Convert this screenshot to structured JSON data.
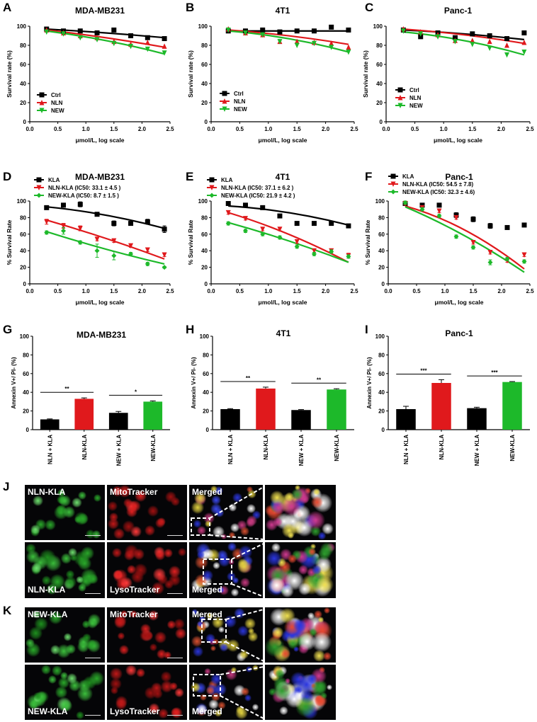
{
  "survival_axis": {
    "ylabel_top": "Survival rate (%)",
    "ylabel_mid": "% Survival Rate",
    "xlabel": "μmol/L, log scale",
    "x_ticks": [
      "0.0",
      "0.5",
      "1.0",
      "1.5",
      "2.0",
      "2.5"
    ],
    "y_ticks_top": [
      "0",
      "20",
      "40",
      "60",
      "80",
      "100"
    ],
    "y_ticks_mid": [
      "0",
      "20",
      "40",
      "60",
      "80",
      "100"
    ]
  },
  "colors": {
    "black": "#000000",
    "red": "#e0191c",
    "green": "#1db92a"
  },
  "chart_data": [
    {
      "id": "A",
      "type": "scatter",
      "title": "MDA-MB231",
      "xlabel": "μmol/L, log scale",
      "ylabel": "Survival rate (%)",
      "xlim": [
        0,
        2.5
      ],
      "ylim": [
        0,
        100
      ],
      "x": [
        0.3,
        0.6,
        0.9,
        1.2,
        1.5,
        1.8,
        2.1,
        2.4
      ],
      "legend": [
        "Ctrl",
        "NLN",
        "NEW"
      ],
      "series": [
        {
          "name": "Ctrl",
          "color": "#000000",
          "marker": "square",
          "values": [
            97,
            95,
            95,
            93,
            96,
            90,
            88,
            87
          ],
          "fit": [
            97,
            93,
            88
          ]
        },
        {
          "name": "NLN",
          "color": "#e0191c",
          "marker": "triangle",
          "values": [
            96,
            93,
            90,
            88,
            84,
            81,
            83,
            79
          ],
          "fit": [
            96,
            88,
            78
          ]
        },
        {
          "name": "NEW",
          "color": "#1db92a",
          "marker": "tri-down",
          "values": [
            94,
            92,
            88,
            86,
            82,
            79,
            76,
            72
          ],
          "fit": [
            95,
            85,
            71
          ]
        }
      ]
    },
    {
      "id": "B",
      "type": "scatter",
      "title": "4T1",
      "xlabel": "μmol/L, log scale",
      "ylabel": "Survival rate (%)",
      "xlim": [
        0,
        2.5
      ],
      "ylim": [
        0,
        100
      ],
      "x": [
        0.3,
        0.6,
        0.9,
        1.2,
        1.5,
        1.8,
        2.1,
        2.4
      ],
      "legend": [
        "Ctrl",
        "NLN",
        "NEW"
      ],
      "series": [
        {
          "name": "Ctrl",
          "color": "#000000",
          "marker": "square",
          "values": [
            95,
            95,
            96,
            94,
            95,
            95,
            99,
            96
          ],
          "fit": [
            95,
            95,
            95
          ]
        },
        {
          "name": "NLN",
          "color": "#e0191c",
          "marker": "triangle",
          "values": [
            97,
            93,
            91,
            84,
            84,
            83,
            82,
            78
          ],
          "fit": [
            96,
            90,
            81
          ]
        },
        {
          "name": "NEW",
          "color": "#1db92a",
          "marker": "tri-down",
          "values": [
            96,
            93,
            91,
            84,
            80,
            82,
            78,
            73
          ],
          "fit": [
            95,
            87,
            73
          ]
        }
      ]
    },
    {
      "id": "C",
      "type": "scatter",
      "title": "Panc-1",
      "xlabel": "μmol/L, log scale",
      "ylabel": "Survival rate (%)",
      "xlim": [
        0,
        2.5
      ],
      "ylim": [
        0,
        100
      ],
      "x": [
        0.3,
        0.6,
        0.9,
        1.2,
        1.5,
        1.8,
        2.1,
        2.4
      ],
      "legend": [
        "Ctrl",
        "NLN",
        "NEW"
      ],
      "series": [
        {
          "name": "Ctrl",
          "color": "#000000",
          "marker": "square",
          "values": [
            96,
            89,
            93,
            88,
            92,
            90,
            87,
            93
          ],
          "fit": [
            96,
            92,
            86
          ]
        },
        {
          "name": "NLN",
          "color": "#e0191c",
          "marker": "triangle",
          "values": [
            97,
            94,
            91,
            85,
            85,
            84,
            80,
            83
          ],
          "fit": [
            97,
            91,
            82
          ]
        },
        {
          "name": "NEW",
          "color": "#1db92a",
          "marker": "tri-down",
          "values": [
            95,
            92,
            89,
            84,
            81,
            77,
            70,
            73
          ],
          "fit": [
            94,
            85,
            70
          ]
        }
      ]
    },
    {
      "id": "D",
      "type": "scatter",
      "title": "MDA-MB231",
      "xlabel": "μmol/L, log scale",
      "ylabel": "% Survival Rate",
      "xlim": [
        0,
        2.5
      ],
      "ylim": [
        0,
        100
      ],
      "x": [
        0.3,
        0.6,
        0.9,
        1.2,
        1.5,
        1.8,
        2.1,
        2.4
      ],
      "legend": [
        "KLA",
        "NLN-KLA (IC50: 33.1 ± 4.5 )",
        "NEW-KLA (IC50: 8.7 ± 1.5 )"
      ],
      "series": [
        {
          "name": "KLA",
          "color": "#000000",
          "marker": "square",
          "values": [
            92,
            95,
            96,
            84,
            73,
            73,
            75,
            66
          ],
          "err": [
            2,
            2,
            3,
            2,
            3,
            2,
            3,
            4
          ],
          "fit": [
            93,
            83,
            67
          ]
        },
        {
          "name": "NLN-KLA",
          "color": "#e0191c",
          "marker": "tri-down",
          "values": [
            75,
            70,
            67,
            54,
            52,
            46,
            41,
            35
          ],
          "err": [
            3,
            3,
            3,
            2,
            2,
            2,
            2,
            2
          ],
          "fit": [
            77,
            55,
            30
          ]
        },
        {
          "name": "NEW-KLA",
          "color": "#1db92a",
          "marker": "diamond",
          "values": [
            62,
            64,
            50,
            40,
            34,
            36,
            24,
            20
          ],
          "err": [
            2,
            4,
            2,
            8,
            5,
            2,
            2,
            1
          ],
          "fit": [
            63,
            42,
            24
          ]
        }
      ]
    },
    {
      "id": "E",
      "type": "scatter",
      "title": "4T1",
      "xlabel": "μmol/L, log scale",
      "ylabel": "% Survival Rate",
      "xlim": [
        0,
        2.5
      ],
      "ylim": [
        0,
        100
      ],
      "x": [
        0.3,
        0.6,
        0.9,
        1.2,
        1.5,
        1.8,
        2.1,
        2.4
      ],
      "legend": [
        "KLA",
        "NLN-KLA (IC50: 37.1 ± 6.2 )",
        "NEW-KLA (IC50: 21.9 ± 4.2 )"
      ],
      "series": [
        {
          "name": "KLA",
          "color": "#000000",
          "marker": "square",
          "values": [
            97,
            95,
            92,
            82,
            73,
            73,
            73,
            70
          ],
          "err": [
            2,
            2,
            2,
            2,
            2,
            2,
            2,
            2
          ],
          "fit": [
            94,
            86,
            71
          ]
        },
        {
          "name": "NLN-KLA",
          "color": "#e0191c",
          "marker": "tri-down",
          "values": [
            86,
            79,
            66,
            66,
            51,
            40,
            40,
            34
          ],
          "err": [
            2,
            2,
            2,
            2,
            2,
            2,
            2,
            3
          ],
          "fit": [
            86,
            60,
            26
          ]
        },
        {
          "name": "NEW-KLA",
          "color": "#1db92a",
          "marker": "diamond",
          "values": [
            73,
            64,
            60,
            56,
            45,
            36,
            39,
            33
          ],
          "err": [
            2,
            2,
            2,
            2,
            2,
            2,
            2,
            2
          ],
          "fit": [
            74,
            52,
            26
          ]
        }
      ]
    },
    {
      "id": "F",
      "type": "scatter",
      "title": "Panc-1",
      "xlabel": "μmol/L, log scale",
      "ylabel": "% Survival Rate",
      "xlim": [
        0,
        2.5
      ],
      "ylim": [
        0,
        100
      ],
      "x": [
        0.3,
        0.6,
        0.9,
        1.2,
        1.5,
        1.8,
        2.1,
        2.4
      ],
      "legend": [
        "KLA",
        "NLN-KLA (IC50: 54.5 ± 7.8)",
        "NEW-KLA (IC50: 32.3 ± 4.6)"
      ],
      "series": [
        {
          "name": "KLA",
          "color": "#000000",
          "marker": "square",
          "values": [
            97,
            95,
            95,
            83,
            78,
            70,
            68,
            71
          ],
          "err": [
            2,
            2,
            2,
            3,
            3,
            3,
            2,
            2
          ],
          "fit": null
        },
        {
          "name": "NLN-KLA",
          "color": "#e0191c",
          "marker": "tri-down",
          "values": [
            97,
            92,
            88,
            80,
            50,
            38,
            28,
            35
          ],
          "err": [
            2,
            2,
            2,
            2,
            2,
            2,
            2,
            2
          ],
          "fit": [
            94,
            65,
            18
          ]
        },
        {
          "name": "NEW-KLA",
          "color": "#1db92a",
          "marker": "diamond",
          "values": [
            98,
            90,
            82,
            57,
            44,
            26,
            30,
            27
          ],
          "err": [
            2,
            2,
            2,
            2,
            2,
            3,
            2,
            2
          ],
          "fit": [
            93,
            58,
            14
          ]
        }
      ]
    },
    {
      "id": "G",
      "type": "bar",
      "title": "MDA-MB231",
      "ylabel": "Annexin V+/ PI- (%)",
      "ylim": [
        0,
        100
      ],
      "y_ticks": [
        "0",
        "20",
        "40",
        "60",
        "80",
        "100"
      ],
      "categories": [
        "NLN + KLA",
        "NLN-KLA",
        "NEW + KLA",
        "NEW-KLA"
      ],
      "values": [
        11,
        33,
        18,
        30
      ],
      "err": [
        0.5,
        1,
        1.5,
        0.8
      ],
      "bar_colors": [
        "#000000",
        "#e0191c",
        "#000000",
        "#1db92a"
      ],
      "annotations": [
        {
          "pair": [
            0,
            1
          ],
          "label": "**"
        },
        {
          "pair": [
            2,
            3
          ],
          "label": "*"
        }
      ]
    },
    {
      "id": "H",
      "type": "bar",
      "title": "4T1",
      "ylabel": "Annexin V+/ PI- (%)",
      "ylim": [
        0,
        100
      ],
      "y_ticks": [
        "0",
        "20",
        "40",
        "60",
        "80",
        "100"
      ],
      "categories": [
        "NLN + KLA",
        "NLN-KLA",
        "NEW + KLA",
        "NEW-KLA"
      ],
      "values": [
        22,
        44,
        21,
        43
      ],
      "err": [
        0.5,
        1.5,
        0.5,
        0.8
      ],
      "bar_colors": [
        "#000000",
        "#e0191c",
        "#000000",
        "#1db92a"
      ],
      "annotations": [
        {
          "pair": [
            0,
            1
          ],
          "label": "**"
        },
        {
          "pair": [
            2,
            3
          ],
          "label": "**"
        }
      ]
    },
    {
      "id": "I",
      "type": "bar",
      "title": "Panc-1",
      "ylabel": "Annexin V+/ PI- (%)",
      "ylim": [
        0,
        100
      ],
      "y_ticks": [
        "0",
        "20",
        "40",
        "60",
        "80",
        "100"
      ],
      "categories": [
        "NLN + KLA",
        "NLN-KLA",
        "NEW + KLA",
        "NEW-KLA"
      ],
      "values": [
        22,
        50,
        23,
        51
      ],
      "err": [
        3,
        3.5,
        1,
        0.5
      ],
      "bar_colors": [
        "#000000",
        "#e0191c",
        "#000000",
        "#1db92a"
      ],
      "annotations": [
        {
          "pair": [
            0,
            1
          ],
          "label": "***"
        },
        {
          "pair": [
            2,
            3
          ],
          "label": "***"
        }
      ]
    }
  ],
  "panel_labels": [
    "A",
    "B",
    "C",
    "D",
    "E",
    "F",
    "G",
    "H",
    "I",
    "J",
    "K"
  ],
  "micrographs": {
    "J": {
      "row1": [
        "NLN-KLA",
        "MitoTracker",
        "Merged"
      ],
      "row2": [
        "NLN-KLA",
        "LysoTracker",
        "Merged"
      ]
    },
    "K": {
      "row1": [
        "NEW-KLA",
        "MitoTracker",
        "Merged"
      ],
      "row2": [
        "NEW-KLA",
        "LysoTracker",
        "Merged"
      ]
    }
  }
}
